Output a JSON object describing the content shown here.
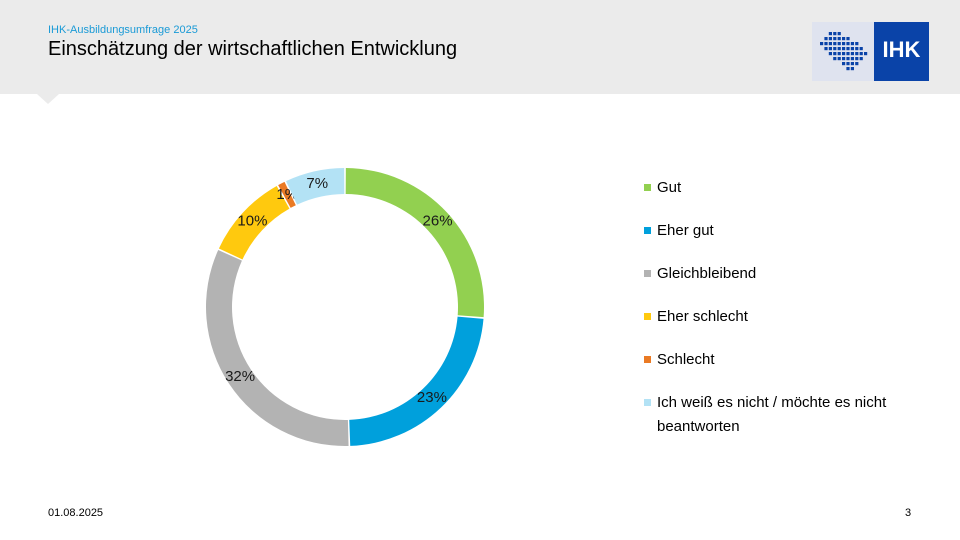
{
  "header": {
    "supertitle": "IHK-Ausbildungsumfrage 2025",
    "title": "Einschätzung der wirtschaftlichen Entwicklung",
    "logo_text": "IHK",
    "logo_color": "#0a43a8"
  },
  "chart_data": {
    "type": "pie",
    "variant": "donut",
    "title": "",
    "legend_position": "right",
    "series": [
      {
        "name": "Gut",
        "value": 26,
        "label": "26%",
        "color": "#92d050"
      },
      {
        "name": "Eher gut",
        "value": 23,
        "label": "23%",
        "color": "#00a0dc"
      },
      {
        "name": "Gleichbleibend",
        "value": 32,
        "label": "32%",
        "color": "#b3b3b3"
      },
      {
        "name": "Eher schlecht",
        "value": 10,
        "label": "10%",
        "color": "#ffc90e"
      },
      {
        "name": "Schlecht",
        "value": 1,
        "label": "1%",
        "color": "#ea7a24"
      },
      {
        "name": "Ich weiß es nicht / möchte es nicht beantworten",
        "value": 7,
        "label": "7%",
        "color": "#b3e2f5"
      }
    ]
  },
  "footer": {
    "date": "01.08.2025",
    "page": "3"
  }
}
